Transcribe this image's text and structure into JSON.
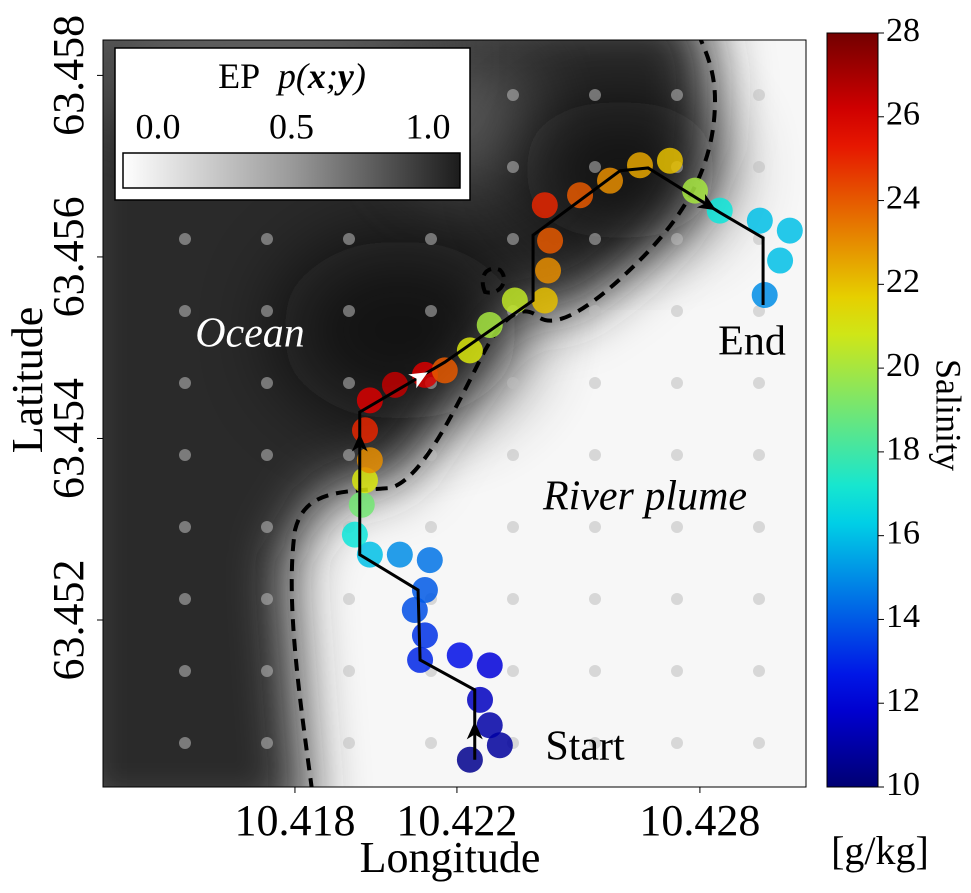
{
  "chart_data": {
    "type": "trajectory",
    "xlabel": "Longitude",
    "ylabel": "Latitude",
    "xlim": [
      10.41326,
      10.43062
    ],
    "ylim": [
      63.45016,
      63.45839
    ],
    "xticks": [
      10.418,
      10.422,
      10.428
    ],
    "yticks": [
      63.452,
      63.454,
      63.456,
      63.458
    ],
    "colormap": "jet",
    "clim": [
      10,
      28
    ],
    "colorbar_ticks": [
      10,
      12,
      14,
      16,
      18,
      20,
      22,
      24,
      26,
      28
    ],
    "colorbar_label": "Salinity",
    "colorbar_unit": "[g/kg]",
    "annotations": {
      "ocean": "Ocean",
      "river_plume": "River plume",
      "start": "Start",
      "end": "End"
    },
    "ep_legend": {
      "title_parts": [
        "EP",
        "p(",
        "x",
        ";",
        "y",
        ")"
      ],
      "lim": [
        0,
        1
      ],
      "ticks": [
        {
          "value": 0,
          "label": "0.0"
        },
        {
          "value": 0.5,
          "label": "0.5"
        },
        {
          "value": 1,
          "label": "1.0"
        }
      ]
    },
    "route": {
      "lon": [
        10.42244,
        10.42244,
        10.42109,
        10.42104,
        10.4196,
        10.4196,
        10.4217,
        10.42388,
        10.42388,
        10.42603,
        10.42672,
        10.42849,
        10.42956,
        10.42956
      ],
      "lat": [
        63.45046,
        63.45123,
        63.45156,
        63.45233,
        63.45272,
        63.45429,
        63.45484,
        63.45552,
        63.45624,
        63.45695,
        63.45698,
        63.45649,
        63.45621,
        63.45547
      ]
    },
    "trajectory": {
      "lon": [
        10.42232,
        10.42306,
        10.42281,
        10.42257,
        10.42281,
        10.42207,
        10.42109,
        10.42121,
        10.42096,
        10.42121,
        10.42133,
        10.42059,
        10.41985,
        10.41948,
        10.41965,
        10.41973,
        10.41985,
        10.41973,
        10.41985,
        10.42047,
        10.42121,
        10.4217,
        10.42232,
        10.42281,
        10.42343,
        10.42417,
        10.42425,
        10.4243,
        10.42417,
        10.42504,
        10.42578,
        10.42652,
        10.42726,
        10.42788,
        10.42849,
        10.42948,
        10.43022,
        10.42998,
        10.4296
      ],
      "lat": [
        63.45046,
        63.45062,
        63.45084,
        63.45112,
        63.4515,
        63.45161,
        63.45156,
        63.45183,
        63.45211,
        63.45233,
        63.45266,
        63.45272,
        63.45272,
        63.45294,
        63.45327,
        63.45354,
        63.45376,
        63.45409,
        63.45442,
        63.45459,
        63.4547,
        63.45475,
        63.45497,
        63.45525,
        63.45552,
        63.45552,
        63.45585,
        63.45618,
        63.45657,
        63.45668,
        63.45684,
        63.45701,
        63.45706,
        63.45673,
        63.45651,
        63.4564,
        63.45629,
        63.45596,
        63.45558
      ],
      "salinity": [
        10.5,
        10.8,
        11,
        11.5,
        12,
        12.5,
        13,
        13.2,
        13.8,
        14,
        14.5,
        15,
        16,
        17,
        19,
        21,
        23,
        25,
        26,
        26.5,
        26,
        24,
        21,
        20,
        20.5,
        22,
        23,
        24,
        25,
        24,
        23,
        22.5,
        22,
        20,
        17,
        16,
        16,
        16,
        15
      ]
    }
  }
}
